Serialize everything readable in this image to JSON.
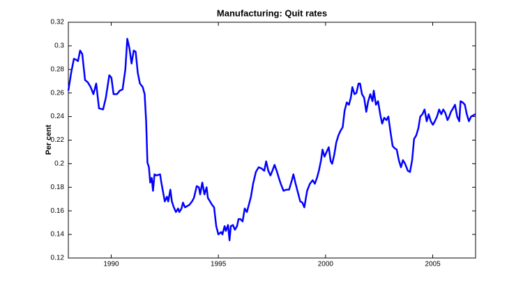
{
  "chart_data": {
    "type": "line",
    "title": "Manufacturing: Quit rates",
    "ylabel": "Per cent",
    "color": "#0000ff",
    "xlim": [
      1988,
      2007
    ],
    "xticks": [
      1990,
      1995,
      2000,
      2005
    ],
    "ylim": [
      0.12,
      0.32
    ],
    "yticks": [
      0.12,
      0.14,
      0.16,
      0.18,
      0.2,
      0.22,
      0.24,
      0.26,
      0.28,
      0.3,
      0.32
    ],
    "x": [
      1988.0,
      1988.13,
      1988.26,
      1988.39,
      1988.45,
      1988.55,
      1988.65,
      1988.78,
      1988.91,
      1989.04,
      1989.17,
      1989.3,
      1989.43,
      1989.62,
      1989.75,
      1989.91,
      1990.01,
      1990.11,
      1990.27,
      1990.4,
      1990.53,
      1990.66,
      1990.75,
      1990.85,
      1990.95,
      1991.05,
      1991.14,
      1991.24,
      1991.34,
      1991.47,
      1991.56,
      1991.63,
      1991.69,
      1991.76,
      1991.82,
      1991.89,
      1991.95,
      1992.02,
      1992.11,
      1992.28,
      1992.34,
      1992.44,
      1992.5,
      1992.6,
      1992.66,
      1992.76,
      1992.83,
      1992.92,
      1993.02,
      1993.12,
      1993.18,
      1993.28,
      1993.35,
      1993.44,
      1993.64,
      1993.77,
      1993.86,
      1993.99,
      1994.09,
      1994.15,
      1994.25,
      1994.35,
      1994.45,
      1994.51,
      1994.61,
      1994.71,
      1994.8,
      1994.9,
      1995.0,
      1995.13,
      1995.19,
      1995.29,
      1995.35,
      1995.45,
      1995.52,
      1995.58,
      1995.68,
      1995.77,
      1995.87,
      1995.94,
      1996.03,
      1996.13,
      1996.23,
      1996.33,
      1996.42,
      1996.52,
      1996.62,
      1996.75,
      1996.88,
      1997.01,
      1997.14,
      1997.23,
      1997.33,
      1997.43,
      1997.52,
      1997.62,
      1997.72,
      1997.82,
      1997.91,
      1998.04,
      1998.17,
      1998.3,
      1998.43,
      1998.5,
      1998.59,
      1998.69,
      1998.82,
      1998.92,
      1999.01,
      1999.14,
      1999.27,
      1999.4,
      1999.5,
      1999.6,
      1999.69,
      1999.79,
      1999.86,
      1999.95,
      2000.05,
      2000.15,
      2000.24,
      2000.31,
      2000.41,
      2000.5,
      2000.6,
      2000.7,
      2000.8,
      2000.89,
      2000.99,
      2001.09,
      2001.18,
      2001.25,
      2001.35,
      2001.44,
      2001.54,
      2001.61,
      2001.7,
      2001.8,
      2001.9,
      2001.99,
      2002.09,
      2002.19,
      2002.25,
      2002.35,
      2002.45,
      2002.55,
      2002.64,
      2002.74,
      2002.84,
      2002.93,
      2003.03,
      2003.13,
      2003.23,
      2003.32,
      2003.42,
      2003.52,
      2003.61,
      2003.71,
      2003.84,
      2003.94,
      2004.04,
      2004.13,
      2004.23,
      2004.33,
      2004.42,
      2004.52,
      2004.62,
      2004.72,
      2004.81,
      2004.91,
      2005.01,
      2005.1,
      2005.2,
      2005.3,
      2005.4,
      2005.49,
      2005.59,
      2005.69,
      2005.75,
      2005.85,
      2005.95,
      2006.04,
      2006.14,
      2006.24,
      2006.3,
      2006.4,
      2006.5,
      2006.59,
      2006.69,
      2006.79,
      2006.99
    ],
    "values": [
      0.262,
      0.277,
      0.289,
      0.288,
      0.287,
      0.296,
      0.293,
      0.271,
      0.269,
      0.265,
      0.259,
      0.268,
      0.247,
      0.246,
      0.256,
      0.275,
      0.273,
      0.259,
      0.259,
      0.262,
      0.263,
      0.28,
      0.306,
      0.298,
      0.285,
      0.296,
      0.295,
      0.277,
      0.268,
      0.265,
      0.259,
      0.236,
      0.201,
      0.197,
      0.184,
      0.188,
      0.177,
      0.191,
      0.19,
      0.191,
      0.184,
      0.174,
      0.168,
      0.172,
      0.168,
      0.178,
      0.168,
      0.163,
      0.159,
      0.162,
      0.159,
      0.162,
      0.167,
      0.163,
      0.165,
      0.168,
      0.171,
      0.181,
      0.18,
      0.174,
      0.184,
      0.174,
      0.18,
      0.171,
      0.168,
      0.165,
      0.163,
      0.147,
      0.14,
      0.142,
      0.14,
      0.147,
      0.143,
      0.148,
      0.135,
      0.147,
      0.148,
      0.144,
      0.147,
      0.153,
      0.153,
      0.151,
      0.162,
      0.159,
      0.165,
      0.172,
      0.183,
      0.193,
      0.197,
      0.196,
      0.194,
      0.202,
      0.194,
      0.19,
      0.194,
      0.199,
      0.194,
      0.188,
      0.183,
      0.177,
      0.178,
      0.178,
      0.186,
      0.191,
      0.184,
      0.177,
      0.168,
      0.167,
      0.163,
      0.177,
      0.183,
      0.186,
      0.183,
      0.188,
      0.194,
      0.203,
      0.212,
      0.206,
      0.21,
      0.214,
      0.202,
      0.2,
      0.208,
      0.218,
      0.224,
      0.228,
      0.231,
      0.245,
      0.252,
      0.25,
      0.256,
      0.265,
      0.259,
      0.26,
      0.268,
      0.268,
      0.259,
      0.256,
      0.244,
      0.253,
      0.259,
      0.253,
      0.262,
      0.25,
      0.253,
      0.242,
      0.234,
      0.239,
      0.237,
      0.24,
      0.227,
      0.215,
      0.213,
      0.212,
      0.203,
      0.197,
      0.203,
      0.2,
      0.194,
      0.193,
      0.203,
      0.221,
      0.224,
      0.23,
      0.24,
      0.242,
      0.246,
      0.236,
      0.242,
      0.236,
      0.233,
      0.236,
      0.24,
      0.246,
      0.242,
      0.246,
      0.243,
      0.237,
      0.239,
      0.244,
      0.247,
      0.25,
      0.24,
      0.236,
      0.253,
      0.252,
      0.25,
      0.242,
      0.236,
      0.24,
      0.242
    ]
  }
}
